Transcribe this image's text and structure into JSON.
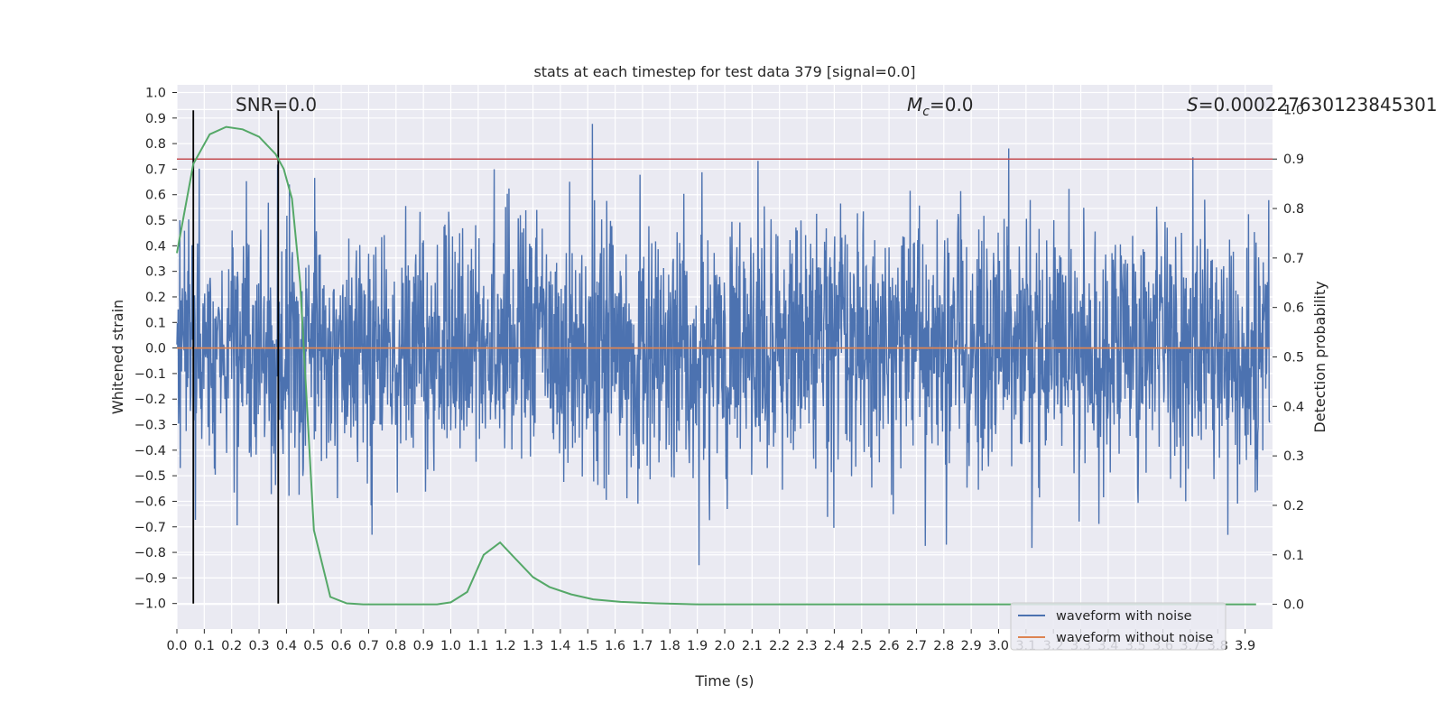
{
  "chart_data": {
    "type": "line",
    "title": "stats at each timestep for test data 379 [signal=0.0]",
    "xlabel": "Time (s)",
    "ylabel": "Whitened strain",
    "y2label": "Detection probability",
    "xlim": [
      0.0,
      4.0
    ],
    "ylim": [
      -1.1,
      1.03
    ],
    "y2lim": [
      -0.05,
      1.05
    ],
    "xticks": [
      "0.0",
      "0.1",
      "0.2",
      "0.3",
      "0.4",
      "0.5",
      "0.6",
      "0.7",
      "0.8",
      "0.9",
      "1.0",
      "1.1",
      "1.2",
      "1.3",
      "1.4",
      "1.5",
      "1.6",
      "1.7",
      "1.8",
      "1.9",
      "2.0",
      "2.1",
      "2.2",
      "2.3",
      "2.4",
      "2.5",
      "2.6",
      "2.7",
      "2.8",
      "2.9",
      "3.0",
      "3.1",
      "3.2",
      "3.3",
      "3.4",
      "3.5",
      "3.6",
      "3.7",
      "3.8",
      "3.9"
    ],
    "yticks": [
      "−1.0",
      "−0.9",
      "−0.8",
      "−0.7",
      "−0.6",
      "−0.5",
      "−0.4",
      "−0.3",
      "−0.2",
      "−0.1",
      "0.0",
      "0.1",
      "0.2",
      "0.3",
      "0.4",
      "0.5",
      "0.6",
      "0.7",
      "0.8",
      "0.9",
      "1.0"
    ],
    "y2ticks": [
      "0.0",
      "0.1",
      "0.2",
      "0.3",
      "0.4",
      "0.5",
      "0.6",
      "0.7",
      "0.8",
      "0.9",
      "1.0"
    ],
    "grid": true,
    "legend_position": "lower-right",
    "series": [
      {
        "name": "waveform with noise",
        "color": "#4c72b0",
        "axis": "left",
        "style": "dense noise, amplitude about 0.3 to 0.9"
      },
      {
        "name": "waveform without noise",
        "color": "#dd8452",
        "axis": "left",
        "values_constant": 0.0
      },
      {
        "color": "#55a868",
        "axis": "right",
        "x": [
          0.0,
          0.06,
          0.12,
          0.18,
          0.24,
          0.3,
          0.36,
          0.39,
          0.42,
          0.45,
          0.5,
          0.56,
          0.62,
          0.68,
          0.75,
          0.85,
          0.95,
          1.0,
          1.06,
          1.12,
          1.18,
          1.24,
          1.3,
          1.36,
          1.44,
          1.52,
          1.62,
          1.75,
          1.9,
          2.1,
          2.5,
          3.0,
          3.5,
          3.94
        ],
        "y": [
          0.71,
          0.89,
          0.95,
          0.965,
          0.96,
          0.945,
          0.91,
          0.88,
          0.82,
          0.65,
          0.15,
          0.015,
          0.002,
          0.0,
          0.0,
          0.0,
          0.0,
          0.004,
          0.025,
          0.1,
          0.125,
          0.09,
          0.055,
          0.035,
          0.02,
          0.01,
          0.005,
          0.002,
          0.0,
          0.0,
          0.0,
          0.0,
          0.0,
          0.0
        ]
      }
    ],
    "threshold_line": {
      "value": 0.9,
      "axis": "right",
      "color": "#c44e52"
    },
    "vertical_markers": [
      {
        "x": 0.06,
        "color": "#000000"
      },
      {
        "x": 0.37,
        "color": "#000000"
      }
    ],
    "annotations": [
      {
        "text": "SNR=0.0"
      },
      {
        "text_main": "M",
        "text_sub": "c",
        "text_rest": "=0.0"
      },
      {
        "text_main": "S",
        "text_rest": "=0.000227630123845301"
      }
    ],
    "colors": {
      "background": "#eaeaf2",
      "grid": "#ffffff",
      "text": "#262626"
    }
  }
}
